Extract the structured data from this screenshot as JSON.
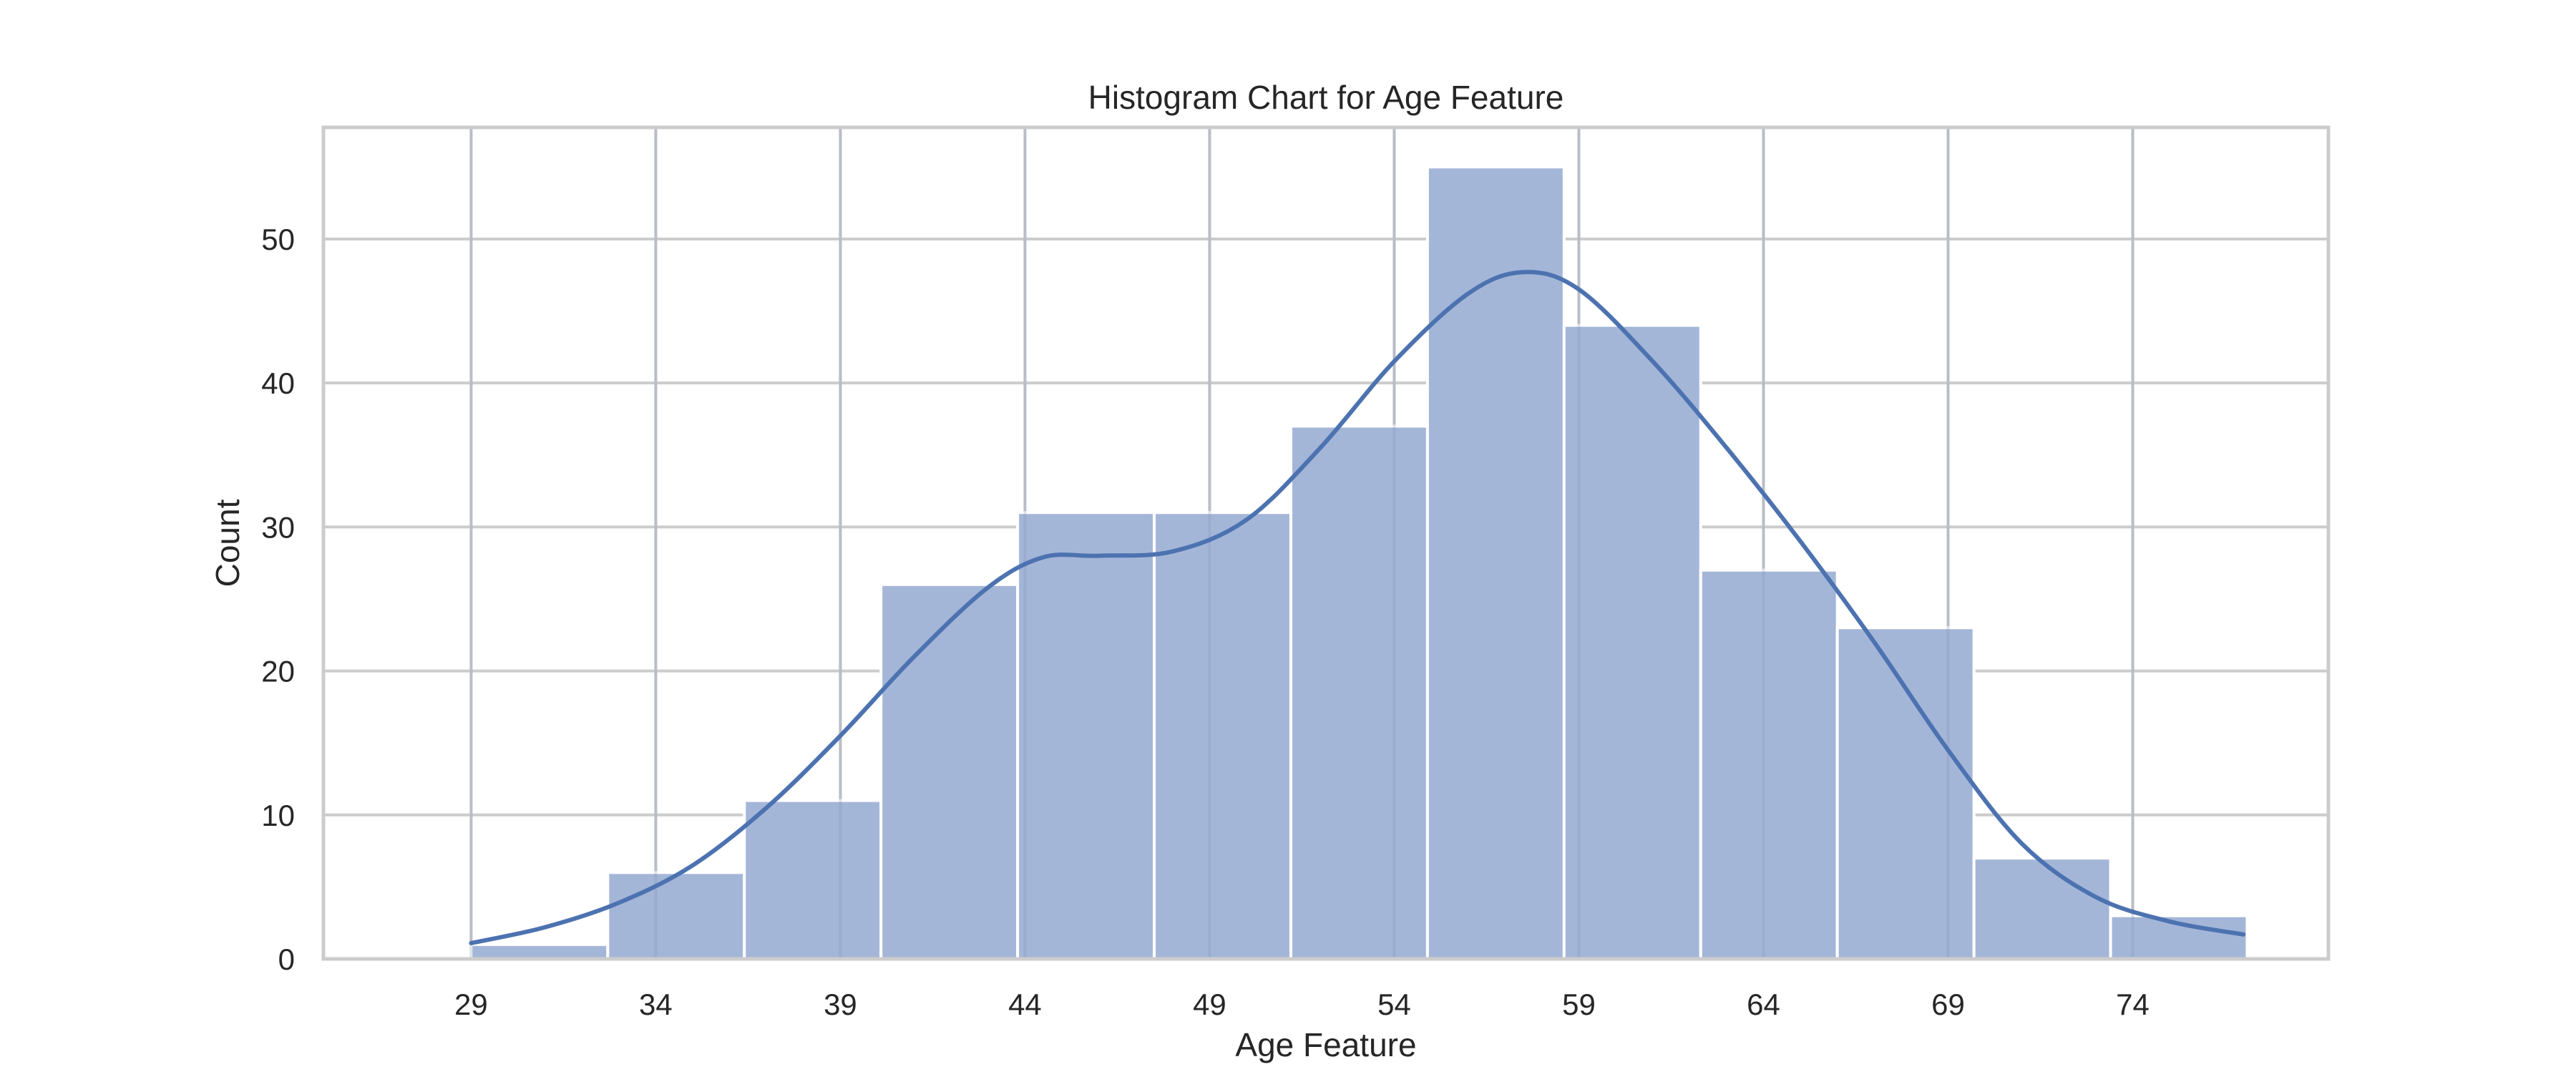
{
  "chart_data": {
    "type": "bar",
    "title": "Histogram Chart for Age Feature",
    "xlabel": "Age Feature",
    "ylabel": "Count",
    "grid": true,
    "xlim": [
      25,
      79.3
    ],
    "ylim": [
      0,
      57.75
    ],
    "x_ticks": [
      29,
      34,
      39,
      44,
      49,
      54,
      59,
      64,
      69,
      74
    ],
    "y_ticks": [
      0,
      10,
      20,
      30,
      40,
      50
    ],
    "bin_edges": [
      29,
      32.7,
      36.4,
      40.1,
      43.8,
      47.5,
      51.2,
      54.9,
      58.6,
      62.3,
      66.0,
      69.7,
      73.4,
      77.1
    ],
    "values": [
      1,
      6,
      11,
      26,
      31,
      31,
      37,
      55,
      44,
      27,
      23,
      7,
      3
    ],
    "kde": {
      "x": [
        29,
        31,
        33,
        35,
        37,
        39,
        41,
        43,
        44.5,
        46,
        48,
        50,
        52,
        54,
        56,
        57.5,
        59,
        61,
        63,
        65,
        67,
        69,
        71,
        73,
        75,
        77
      ],
      "y": [
        1.1,
        2.2,
        3.9,
        6.5,
        10.5,
        15.5,
        21.0,
        25.8,
        27.9,
        28.0,
        28.3,
        30.5,
        35.5,
        41.5,
        46.2,
        47.7,
        46.5,
        41.5,
        35.5,
        29.0,
        22.0,
        14.5,
        8.0,
        4.3,
        2.6,
        1.7
      ]
    },
    "colors": {
      "bar_fill": "#a4b6d8",
      "bar_edge": "#ffffff",
      "line": "#4c72b0",
      "grid": "#cccccc",
      "spine": "#cccccc"
    }
  }
}
